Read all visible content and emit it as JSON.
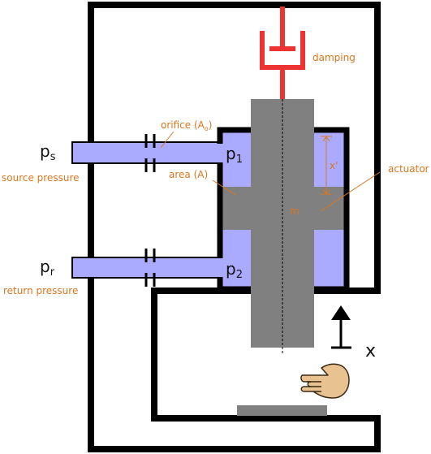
{
  "labels": {
    "damping": "damping",
    "orifice": "orifice (A",
    "orifice_sub": "o",
    "orifice_close": ")",
    "area": "area (A)",
    "actuator": "actuator",
    "mass": "m",
    "x_prime": "x'",
    "x": "x",
    "p1": "p",
    "p1_sub": "1",
    "p2": "p",
    "p2_sub": "2",
    "ps": "p",
    "ps_sub": "s",
    "pr": "p",
    "pr_sub": "r",
    "source_pressure": "source pressure",
    "return_pressure": "return pressure"
  },
  "colors": {
    "fluid": "#aaaaff",
    "piston": "#808080",
    "frame": "#000000",
    "damper": "#ee3333",
    "label": "#d9761e",
    "hand_fill": "#e8c291",
    "hand_stroke": "#3a2a14"
  },
  "icons": {
    "hand": "hand-pushing-icon",
    "arrow": "up-arrow-icon"
  }
}
